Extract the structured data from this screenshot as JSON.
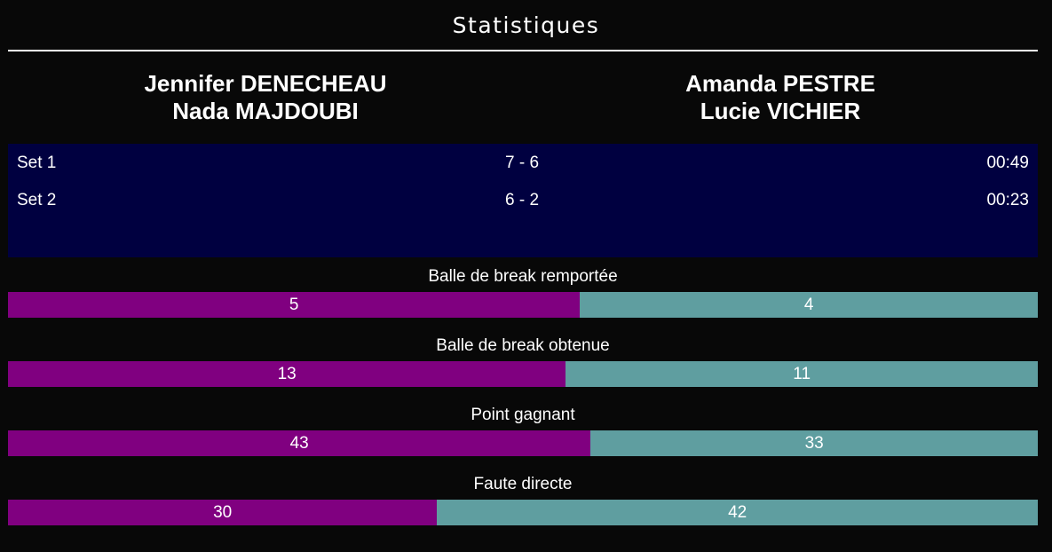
{
  "title": "Statistiques",
  "teams": [
    {
      "players": [
        "Jennifer DENECHEAU",
        "Nada MAJDOUBI"
      ]
    },
    {
      "players": [
        "Amanda PESTRE",
        "Lucie VICHIER"
      ]
    }
  ],
  "sets": [
    {
      "label": "Set 1",
      "score": "7 - 6",
      "duration": "00:49"
    },
    {
      "label": "Set 2",
      "score": "6 - 2",
      "duration": "00:23"
    }
  ],
  "colors": {
    "team1": "#800080",
    "team2": "#5F9EA0",
    "sets_bg": "#000040"
  },
  "stats": [
    {
      "label": "Balle de break remportée",
      "team1": "5",
      "team2": "4"
    },
    {
      "label": "Balle de break obtenue",
      "team1": "13",
      "team2": "11"
    },
    {
      "label": "Point gagnant",
      "team1": "43",
      "team2": "33"
    },
    {
      "label": "Faute directe",
      "team1": "30",
      "team2": "42"
    }
  ]
}
